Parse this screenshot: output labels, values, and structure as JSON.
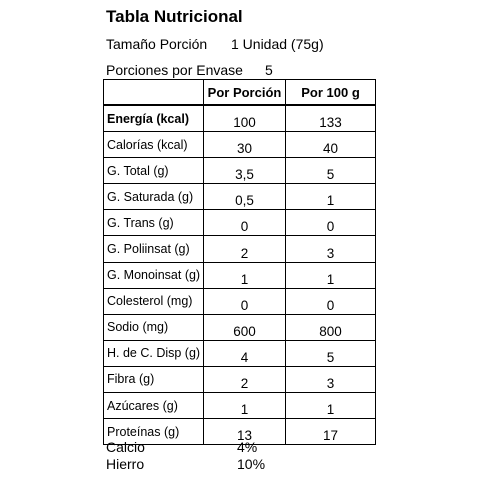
{
  "title": "Tabla Nutricional",
  "serving": {
    "label": "Tamaño Porción",
    "value": "1 Unidad (75g)"
  },
  "per_package": {
    "label": "Porciones por Envase",
    "value": "5"
  },
  "table": {
    "headers": [
      "",
      "Por Porción",
      "Por 100 g"
    ],
    "rows": [
      {
        "name": "Energía (kcal)",
        "per_serving": "100",
        "per_100g": "133"
      },
      {
        "name": "Calorías (kcal)",
        "per_serving": "30",
        "per_100g": "40"
      },
      {
        "name": "G. Total (g)",
        "per_serving": "3,5",
        "per_100g": "5"
      },
      {
        "name": "G. Saturada (g)",
        "per_serving": "0,5",
        "per_100g": "1"
      },
      {
        "name": "G. Trans (g)",
        "per_serving": "0",
        "per_100g": "0"
      },
      {
        "name": "G. Poliinsat (g)",
        "per_serving": "2",
        "per_100g": "3"
      },
      {
        "name": "G. Monoinsat (g)",
        "per_serving": "1",
        "per_100g": "1"
      },
      {
        "name": "Colesterol (mg)",
        "per_serving": "0",
        "per_100g": "0"
      },
      {
        "name": "Sodio (mg)",
        "per_serving": "600",
        "per_100g": "800"
      },
      {
        "name": "H. de C. Disp (g)",
        "per_serving": "4",
        "per_100g": "5"
      },
      {
        "name": "Fibra (g)",
        "per_serving": "2",
        "per_100g": "3"
      },
      {
        "name": "Azúcares (g)",
        "per_serving": "1",
        "per_100g": "1"
      },
      {
        "name": "Proteínas (g)",
        "per_serving": "13",
        "per_100g": "17"
      }
    ]
  },
  "minerals": [
    {
      "name": "Calcio",
      "value": "4%"
    },
    {
      "name": "Hierro",
      "value": "10%"
    }
  ]
}
